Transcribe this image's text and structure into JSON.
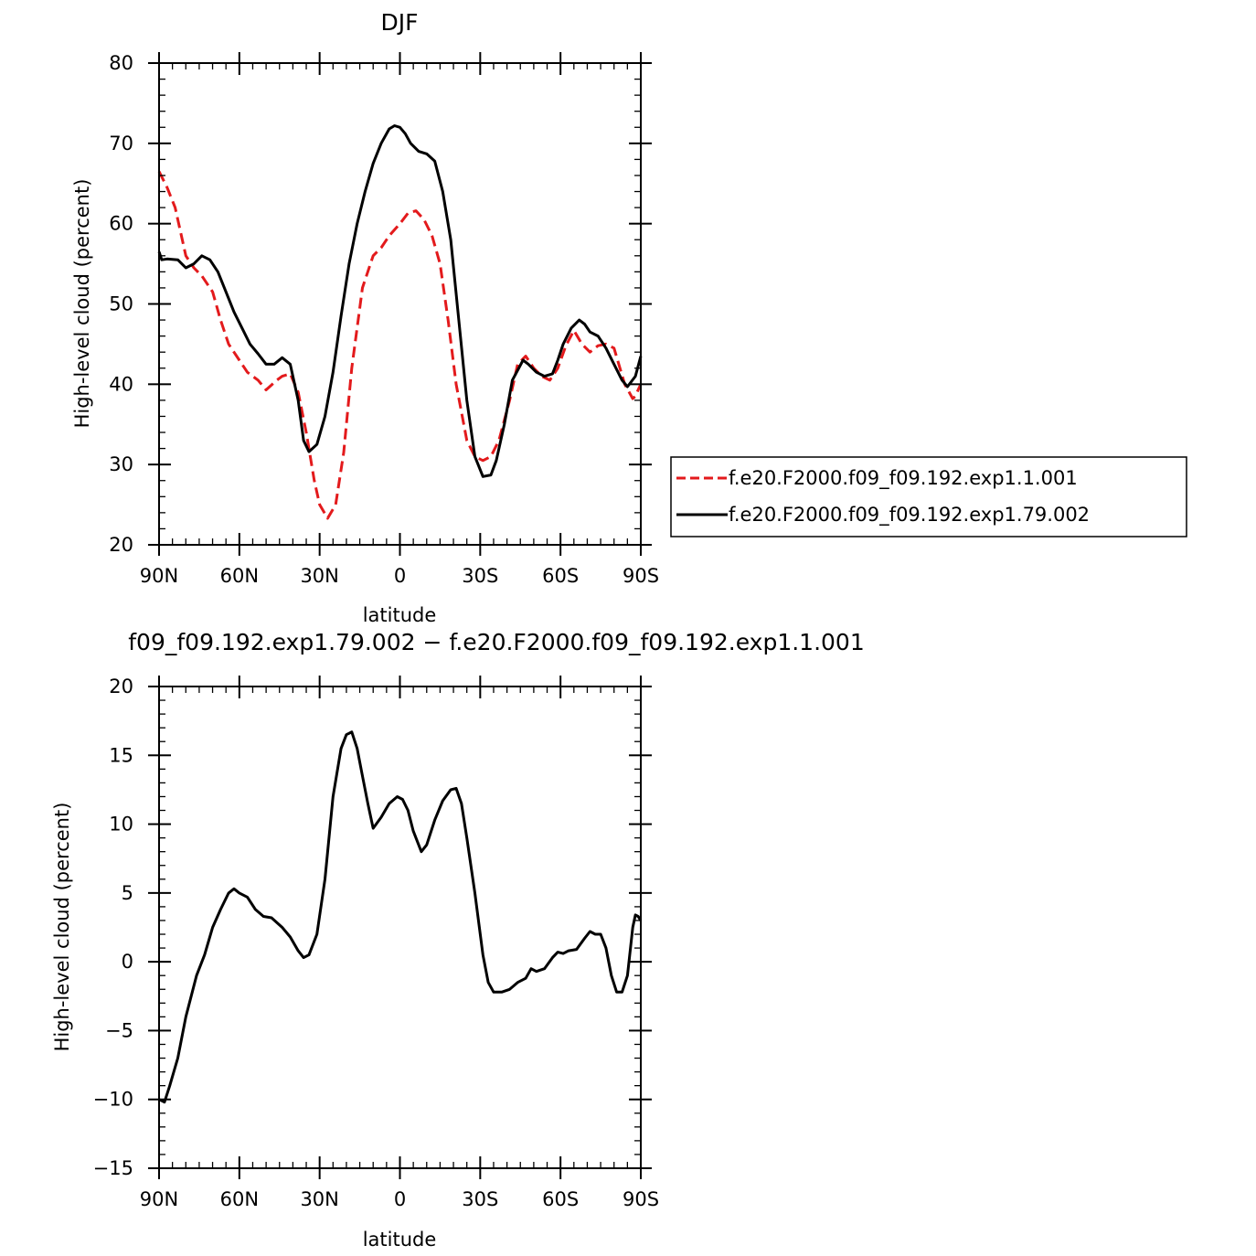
{
  "chart_data": [
    {
      "type": "line",
      "title": "DJF",
      "xlabel": "latitude",
      "ylabel": "High-level cloud (percent)",
      "xlim": [
        -90,
        90
      ],
      "ylim": [
        20,
        80
      ],
      "xticks": [
        {
          "value": -90,
          "label": "90N"
        },
        {
          "value": -60,
          "label": "60N"
        },
        {
          "value": -30,
          "label": "30N"
        },
        {
          "value": 0,
          "label": "0"
        },
        {
          "value": 30,
          "label": "30S"
        },
        {
          "value": 60,
          "label": "60S"
        },
        {
          "value": 90,
          "label": "90S"
        }
      ],
      "yticks": [
        {
          "value": 20,
          "label": "20"
        },
        {
          "value": 30,
          "label": "30"
        },
        {
          "value": 40,
          "label": "40"
        },
        {
          "value": 50,
          "label": "50"
        },
        {
          "value": 60,
          "label": "60"
        },
        {
          "value": 70,
          "label": "70"
        },
        {
          "value": 80,
          "label": "80"
        }
      ],
      "grid": false,
      "legend_position": "right",
      "series": [
        {
          "name": "f.e20.F2000.f09_f09.192.exp1.1.001",
          "color": "#e31a1c",
          "dash": "dashed",
          "x": [
            -90,
            -87,
            -84,
            -80,
            -77,
            -74,
            -70,
            -67,
            -64,
            -60,
            -57,
            -53,
            -50,
            -46,
            -44,
            -41,
            -38,
            -35,
            -32,
            -30,
            -27,
            -24,
            -21,
            -18,
            -14,
            -10,
            -7,
            -4,
            0,
            3,
            6,
            9,
            12,
            15,
            18,
            21,
            25,
            28,
            31,
            34,
            37,
            41,
            44,
            47,
            50,
            53,
            56,
            59,
            62,
            65,
            68,
            71,
            74,
            77,
            80,
            84,
            87,
            88,
            89,
            90
          ],
          "y": [
            66.5,
            64.5,
            62,
            56,
            54.5,
            53.5,
            51.5,
            48,
            45,
            43,
            41.5,
            40.5,
            39.3,
            40.5,
            41,
            41.3,
            39,
            34,
            28,
            25,
            23.3,
            25,
            31.5,
            42,
            52,
            56,
            57,
            58.5,
            60,
            61.3,
            61.6,
            60.5,
            58.5,
            55,
            48,
            40,
            33,
            31,
            30.5,
            31,
            33,
            38,
            42.5,
            43.5,
            42,
            41,
            40.5,
            42,
            44.8,
            46.7,
            45,
            44,
            44.8,
            45,
            44.5,
            40,
            38.2,
            38.5,
            39.3,
            40
          ]
        },
        {
          "name": "f.e20.F2000.f09_f09.192.exp1.79.002",
          "color": "#000000",
          "dash": "solid",
          "x": [
            -90,
            -89,
            -87,
            -83,
            -80,
            -77,
            -74,
            -71,
            -68,
            -65,
            -62,
            -59,
            -56,
            -53,
            -50,
            -47,
            -44,
            -41,
            -38,
            -36,
            -34,
            -31,
            -28,
            -25,
            -22,
            -19,
            -16,
            -13,
            -10,
            -7,
            -4,
            -2,
            0,
            2,
            4,
            7,
            10,
            13,
            16,
            19,
            22,
            25,
            28,
            31,
            34,
            36,
            39,
            42,
            46,
            48,
            51,
            54,
            57,
            59,
            61,
            64,
            67,
            69,
            71,
            74,
            77,
            80,
            83,
            85,
            88,
            90
          ],
          "y": [
            56.5,
            55.5,
            55.6,
            55.5,
            54.5,
            55,
            56,
            55.5,
            54,
            51.5,
            49,
            47,
            45,
            43.8,
            42.5,
            42.5,
            43.3,
            42.5,
            38,
            33,
            31.6,
            32.5,
            36,
            41.5,
            48.5,
            55,
            60,
            64,
            67.5,
            70,
            71.8,
            72.2,
            72,
            71.2,
            70,
            69,
            68.7,
            67.8,
            64,
            58,
            48,
            38,
            31,
            28.5,
            28.7,
            30.5,
            35,
            40.5,
            43,
            42.5,
            41.5,
            41,
            41.3,
            43,
            45,
            47,
            48,
            47.5,
            46.5,
            46,
            44.5,
            42.5,
            40.5,
            39.7,
            41,
            43.5
          ]
        }
      ]
    },
    {
      "type": "line",
      "title": "f09_f09.192.exp1.79.002 − f.e20.F2000.f09_f09.192.exp1.1.001",
      "xlabel": "latitude",
      "ylabel": "High-level cloud (percent)",
      "xlim": [
        -90,
        90
      ],
      "ylim": [
        -15,
        20
      ],
      "xticks": [
        {
          "value": -90,
          "label": "90N"
        },
        {
          "value": -60,
          "label": "60N"
        },
        {
          "value": -30,
          "label": "30N"
        },
        {
          "value": 0,
          "label": "0"
        },
        {
          "value": 30,
          "label": "30S"
        },
        {
          "value": 60,
          "label": "60S"
        },
        {
          "value": 90,
          "label": "90S"
        }
      ],
      "yticks": [
        {
          "value": -15,
          "label": "−15"
        },
        {
          "value": -10,
          "label": "−10"
        },
        {
          "value": -5,
          "label": "−5"
        },
        {
          "value": 0,
          "label": "0"
        },
        {
          "value": 5,
          "label": "5"
        },
        {
          "value": 10,
          "label": "10"
        },
        {
          "value": 15,
          "label": "15"
        },
        {
          "value": 20,
          "label": "20"
        }
      ],
      "grid": false,
      "series": [
        {
          "color": "#000000",
          "dash": "solid",
          "x": [
            -90,
            -88,
            -86,
            -83,
            -80,
            -76,
            -73,
            -70,
            -67,
            -64,
            -62,
            -60,
            -57,
            -54,
            -51,
            -48,
            -44,
            -41,
            -38,
            -36,
            -34,
            -31,
            -28,
            -25,
            -22,
            -20,
            -18,
            -16,
            -14,
            -12,
            -10,
            -7,
            -4,
            -1,
            1,
            3,
            5,
            8,
            10,
            13,
            16,
            19,
            21,
            23,
            25,
            28,
            31,
            33,
            35,
            38,
            41,
            44,
            47,
            49,
            51,
            54,
            57,
            59,
            61,
            63,
            66,
            69,
            71,
            73,
            75,
            77,
            79,
            81,
            83,
            85,
            87,
            88,
            89,
            90
          ],
          "y": [
            -10,
            -10.2,
            -9,
            -7,
            -4,
            -1,
            0.5,
            2.5,
            3.8,
            5,
            5.3,
            5,
            4.7,
            3.8,
            3.3,
            3.2,
            2.5,
            1.8,
            0.8,
            0.3,
            0.5,
            2,
            6,
            12,
            15.5,
            16.5,
            16.7,
            15.5,
            13.5,
            11.5,
            9.7,
            10.5,
            11.5,
            12,
            11.8,
            11,
            9.5,
            8,
            8.5,
            10.3,
            11.7,
            12.5,
            12.6,
            11.5,
            9,
            5,
            0.5,
            -1.5,
            -2.2,
            -2.2,
            -2,
            -1.5,
            -1.2,
            -0.5,
            -0.7,
            -0.5,
            0.3,
            0.7,
            0.6,
            0.8,
            0.9,
            1.7,
            2.2,
            2.0,
            2.0,
            1.0,
            -1,
            -2.2,
            -2.2,
            -1,
            2.5,
            3.4,
            3.3,
            3
          ]
        }
      ]
    }
  ]
}
